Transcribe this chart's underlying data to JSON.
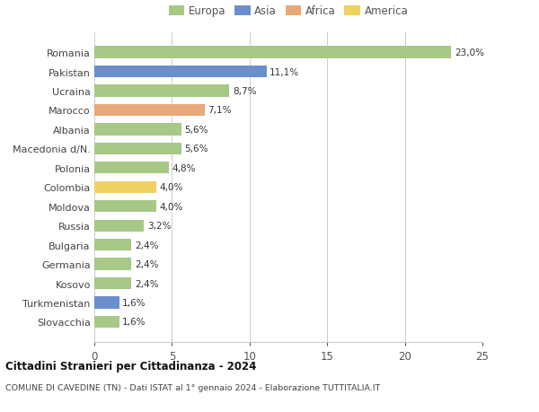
{
  "categories": [
    "Romania",
    "Pakistan",
    "Ucraina",
    "Marocco",
    "Albania",
    "Macedonia d/N.",
    "Polonia",
    "Colombia",
    "Moldova",
    "Russia",
    "Bulgaria",
    "Germania",
    "Kosovo",
    "Turkmenistan",
    "Slovacchia"
  ],
  "values": [
    23.0,
    11.1,
    8.7,
    7.1,
    5.6,
    5.6,
    4.8,
    4.0,
    4.0,
    3.2,
    2.4,
    2.4,
    2.4,
    1.6,
    1.6
  ],
  "bar_colors": [
    "#a8c888",
    "#6b8fcc",
    "#a8c888",
    "#e8a878",
    "#a8c888",
    "#a8c888",
    "#a8c888",
    "#f0d060",
    "#a8c888",
    "#a8c888",
    "#a8c888",
    "#a8c888",
    "#a8c888",
    "#6b8fcc",
    "#a8c888"
  ],
  "labels": [
    "23,0%",
    "11,1%",
    "8,7%",
    "7,1%",
    "5,6%",
    "5,6%",
    "4,8%",
    "4,0%",
    "4,0%",
    "3,2%",
    "2,4%",
    "2,4%",
    "2,4%",
    "1,6%",
    "1,6%"
  ],
  "legend_labels": [
    "Europa",
    "Asia",
    "Africa",
    "America"
  ],
  "legend_colors": [
    "#a8c888",
    "#6b8fcc",
    "#e8a878",
    "#f0d060"
  ],
  "title1": "Cittadini Stranieri per Cittadinanza - 2024",
  "title2": "COMUNE DI CAVEDINE (TN) - Dati ISTAT al 1° gennaio 2024 - Elaborazione TUTTITALIA.IT",
  "xlim": [
    0,
    25
  ],
  "xticks": [
    0,
    5,
    10,
    15,
    20,
    25
  ],
  "background_color": "#ffffff",
  "grid_color": "#cccccc"
}
